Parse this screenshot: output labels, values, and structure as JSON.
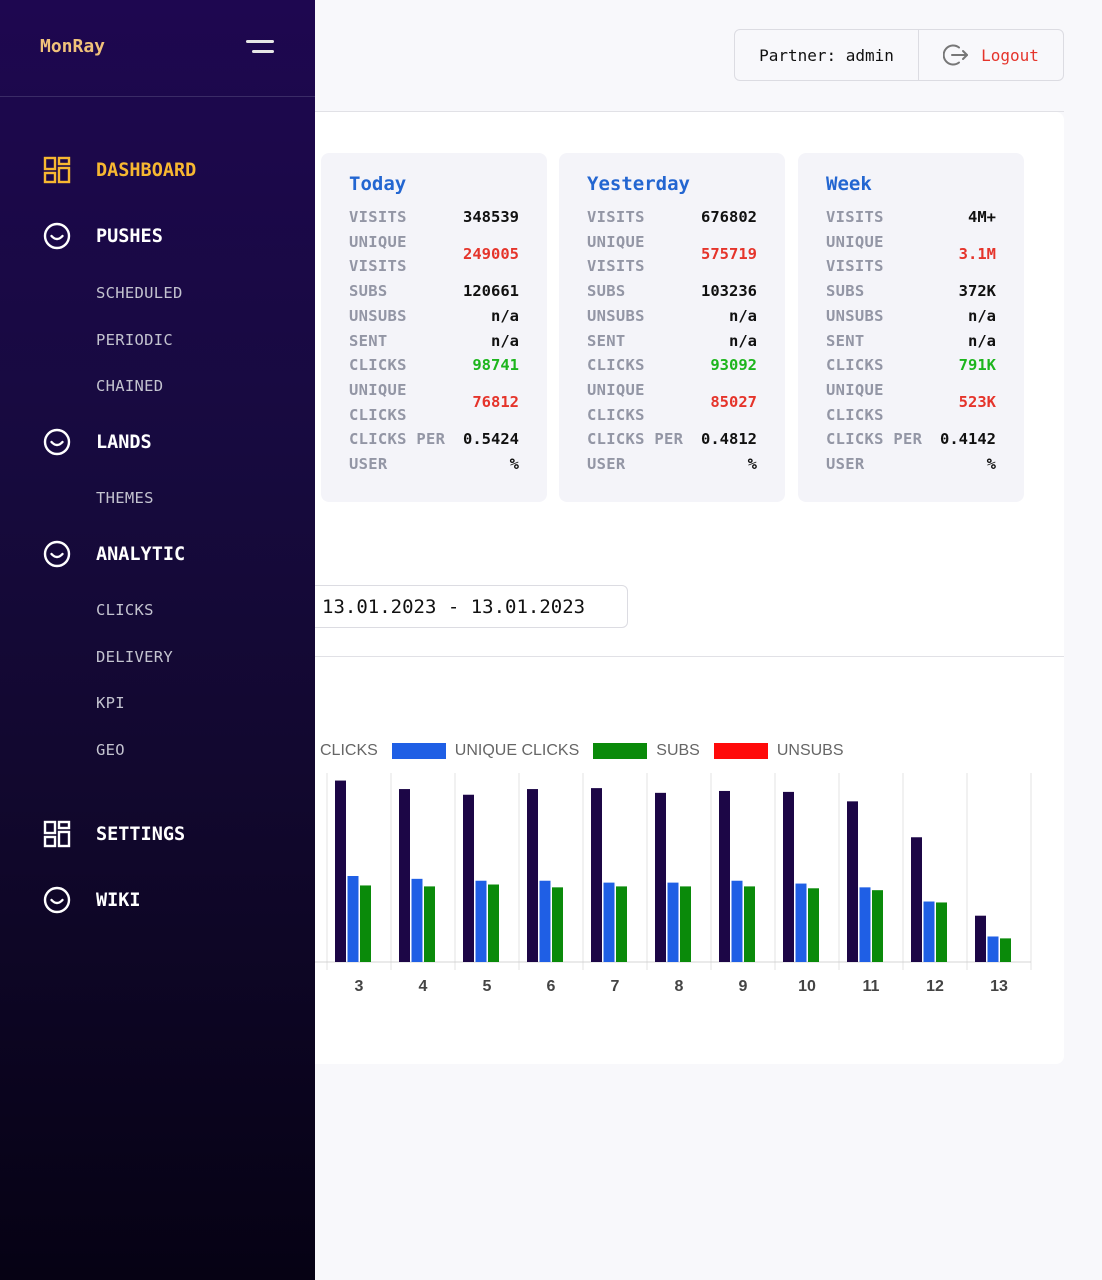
{
  "sidebar": {
    "brand": "MonRay",
    "items": [
      {
        "label": "DASHBOARD",
        "icon": "grid-icon",
        "active": true
      },
      {
        "label": "PUSHES",
        "icon": "smile-icon"
      },
      {
        "label": "LANDS",
        "icon": "smile-icon"
      },
      {
        "label": "ANALYTIC",
        "icon": "smile-icon"
      },
      {
        "label": "SETTINGS",
        "icon": "grid-icon"
      },
      {
        "label": "WIKI",
        "icon": "smile-icon"
      }
    ],
    "pushes_sub": [
      "SCHEDULED",
      "PERIODIC",
      "CHAINED"
    ],
    "lands_sub": [
      "THEMES"
    ],
    "analytic_sub": [
      "CLICKS",
      "DELIVERY",
      "KPI",
      "GEO"
    ]
  },
  "header": {
    "partner": "Partner: admin",
    "logout": "Logout"
  },
  "stats": [
    {
      "title": "Today",
      "visits": "348539",
      "unique_visits": "249005",
      "subs": "120661",
      "unsubs": "n/a",
      "sent": "n/a",
      "clicks": "98741",
      "unique_clicks": "76812",
      "cpu": "0.5424",
      "cpu_unit": "%"
    },
    {
      "title": "Yesterday",
      "visits": "676802",
      "unique_visits": "575719",
      "subs": "103236",
      "unsubs": "n/a",
      "sent": "n/a",
      "clicks": "93092",
      "unique_clicks": "85027",
      "cpu": "0.4812",
      "cpu_unit": "%"
    },
    {
      "title": "Week",
      "visits": "4M+",
      "unique_visits": "3.1M",
      "subs": "372K",
      "unsubs": "n/a",
      "sent": "n/a",
      "clicks": "791K",
      "unique_clicks": "523K",
      "cpu": "0.4142",
      "cpu_unit": "%"
    }
  ],
  "labels": {
    "visits": "VISITS",
    "unique_visits_1": "UNIQUE",
    "unique_visits_2": "VISITS",
    "subs": "SUBS",
    "unsubs": "UNSUBS",
    "sent": "SENT",
    "clicks": "CLICKS",
    "unique_clicks_1": "UNIQUE",
    "unique_clicks_2": "CLICKS",
    "cpu_1": "CLICKS PER",
    "cpu_2": "USER"
  },
  "date_range": "13.01.2023 - 13.01.2023",
  "colors": {
    "clicks": "#1c0646",
    "unique_clicks": "#1f5fe5",
    "subs": "#0a8a0a",
    "unsubs": "#ff0a0a",
    "accent": "#f7b731",
    "title_blue": "#2366d1"
  },
  "chart_data": {
    "type": "bar",
    "categories": [
      "3",
      "4",
      "5",
      "6",
      "7",
      "8",
      "9",
      "10",
      "11",
      "12",
      "13"
    ],
    "series": [
      {
        "name": "CLICKS",
        "values": [
          96000,
          91500,
          88500,
          91500,
          92000,
          89500,
          90500,
          90000,
          85000,
          66000,
          24500
        ]
      },
      {
        "name": "UNIQUE CLICKS",
        "values": [
          45500,
          44000,
          43000,
          43000,
          42000,
          42000,
          43000,
          41500,
          39500,
          32000,
          13500
        ]
      },
      {
        "name": "SUBS",
        "values": [
          40500,
          40000,
          41000,
          39500,
          40000,
          40000,
          40000,
          39000,
          38000,
          31500,
          12500
        ]
      },
      {
        "name": "UNSUBS",
        "values": [
          0,
          0,
          0,
          0,
          0,
          0,
          0,
          0,
          0,
          0,
          0
        ]
      }
    ],
    "ylim": [
      0,
      100000
    ],
    "legend": "top"
  }
}
